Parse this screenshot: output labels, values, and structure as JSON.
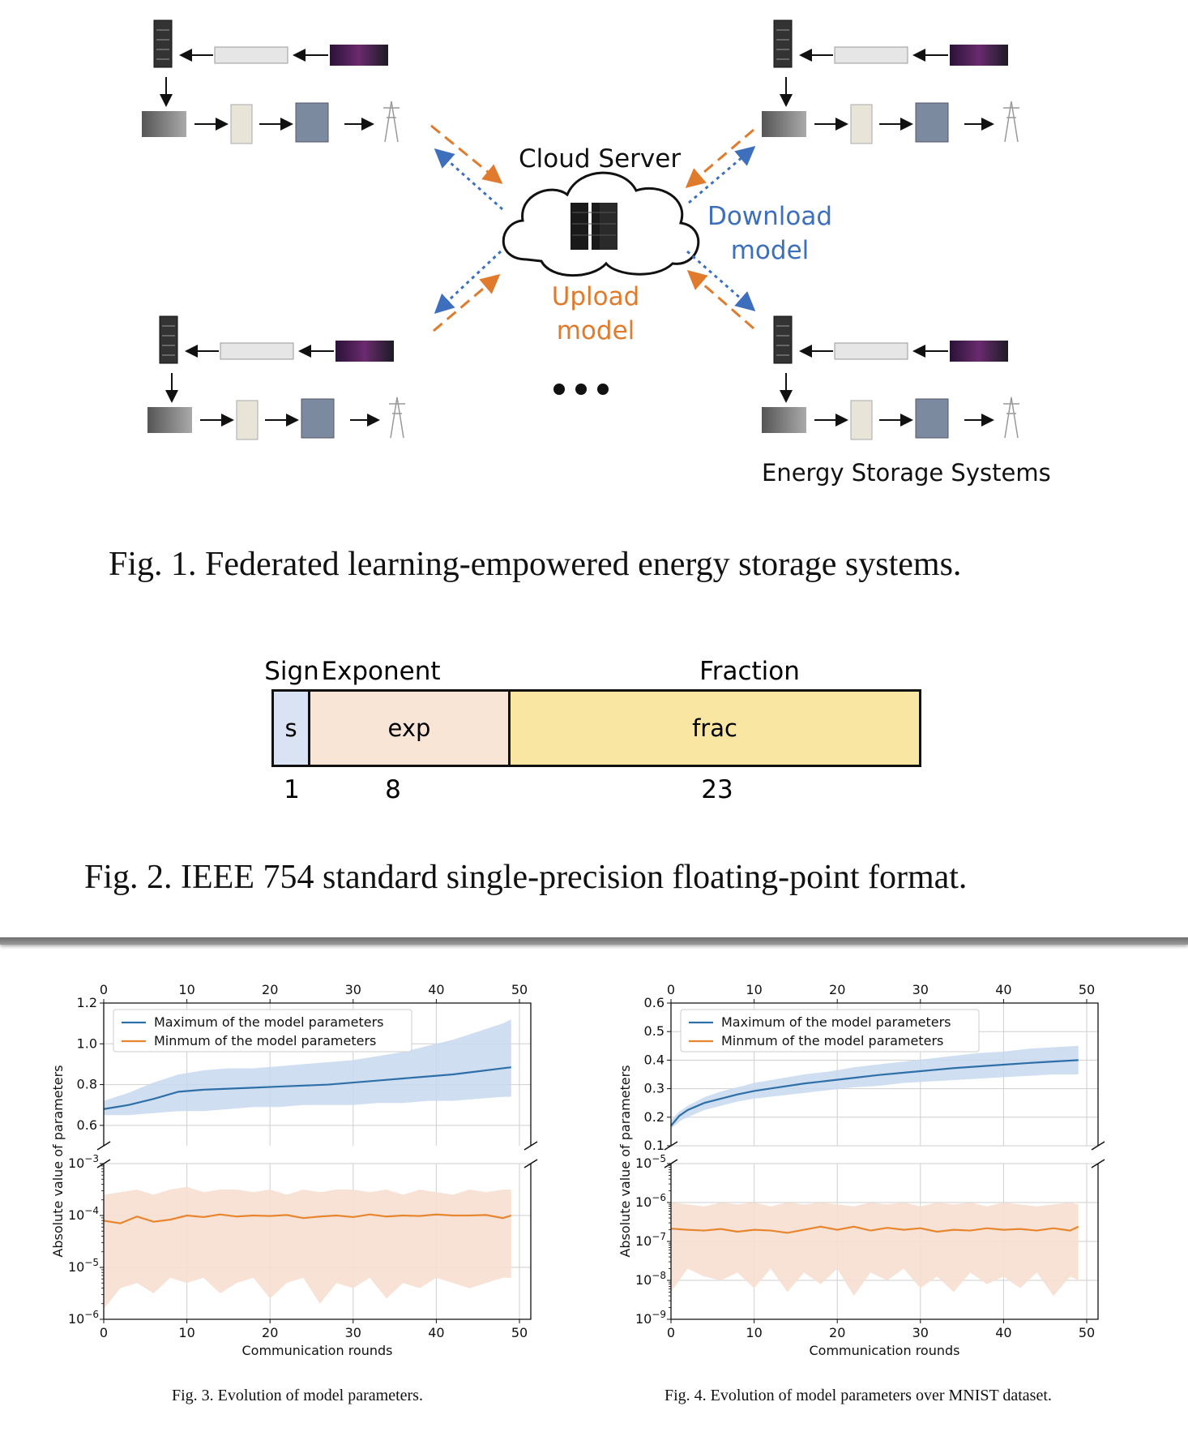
{
  "fig1": {
    "cloud_label": "Cloud Server",
    "download_label": "Download\nmodel",
    "upload_label": "Upload\nmodel",
    "ess_label": "Energy Storage Systems",
    "caption": "Fig. 1.  Federated learning-empowered energy storage systems."
  },
  "fig2": {
    "fields": [
      {
        "header": "Sign",
        "inner": "s",
        "bits": "1",
        "color": "#dae3f3"
      },
      {
        "header": "Exponent",
        "inner": "exp",
        "bits": "8",
        "color": "#f8e5d6"
      },
      {
        "header": "Fraction",
        "inner": "frac",
        "bits": "23",
        "color": "#f9e6a3"
      }
    ],
    "caption": "Fig. 2.  IEEE 754 standard single-precision floating-point format."
  },
  "colors": {
    "max_line": "#2f6fa8",
    "max_band": "#c7d9ee",
    "min_line": "#e8862f",
    "min_band": "#f6dfd0",
    "download": "#3d6fbd",
    "upload": "#e07b2d"
  },
  "chart_data": [
    {
      "type": "line",
      "title": "",
      "caption": "Fig. 3.  Evolution of model parameters.",
      "xlabel": "Communication rounds",
      "ylabel": "Absolute value of parameters",
      "x_ticks": [
        "0",
        "10",
        "20",
        "30",
        "40",
        "50"
      ],
      "xlim": [
        0,
        50
      ],
      "legend": [
        "Maximum of the model parameters",
        "Minmum of the model parameters"
      ],
      "legend_position": "top-left",
      "upper_axis": {
        "ylim": [
          0.5,
          1.2
        ],
        "ticks": [
          "0.6",
          "0.8",
          "1.0",
          "1.2"
        ]
      },
      "lower_axis": {
        "scale": "log",
        "ylim_exp": [
          -6,
          -3
        ],
        "ticks": [
          "10^-6",
          "10^-5",
          "10^-4",
          "10^-3"
        ]
      },
      "max_series": {
        "x": [
          0,
          3,
          6,
          9,
          12,
          15,
          18,
          21,
          24,
          27,
          30,
          33,
          36,
          39,
          42,
          45,
          48,
          49
        ],
        "mean": [
          0.68,
          0.7,
          0.73,
          0.765,
          0.775,
          0.78,
          0.785,
          0.79,
          0.795,
          0.8,
          0.81,
          0.82,
          0.83,
          0.84,
          0.85,
          0.865,
          0.88,
          0.885
        ],
        "upper": [
          0.72,
          0.76,
          0.81,
          0.85,
          0.87,
          0.88,
          0.88,
          0.89,
          0.9,
          0.91,
          0.92,
          0.94,
          0.96,
          0.99,
          1.02,
          1.06,
          1.1,
          1.12
        ],
        "lower": [
          0.65,
          0.65,
          0.66,
          0.67,
          0.67,
          0.68,
          0.69,
          0.69,
          0.7,
          0.7,
          0.7,
          0.71,
          0.71,
          0.72,
          0.72,
          0.73,
          0.74,
          0.74
        ]
      },
      "min_series": {
        "x": [
          0,
          2,
          4,
          6,
          8,
          10,
          12,
          14,
          16,
          18,
          20,
          22,
          24,
          26,
          28,
          30,
          32,
          34,
          36,
          38,
          40,
          42,
          44,
          46,
          48,
          49
        ],
        "mean_exp": [
          -4.1,
          -4.15,
          -4.02,
          -4.12,
          -4.08,
          -4.0,
          -4.03,
          -3.98,
          -4.02,
          -4.0,
          -4.01,
          -3.99,
          -4.05,
          -4.02,
          -4.0,
          -4.03,
          -3.98,
          -4.02,
          -4.0,
          -4.01,
          -3.98,
          -4.0,
          -4.0,
          -3.99,
          -4.05,
          -4.0
        ],
        "upper_exp": [
          -3.6,
          -3.55,
          -3.5,
          -3.6,
          -3.5,
          -3.45,
          -3.55,
          -3.5,
          -3.5,
          -3.55,
          -3.5,
          -3.6,
          -3.5,
          -3.55,
          -3.5,
          -3.5,
          -3.55,
          -3.5,
          -3.6,
          -3.5,
          -3.55,
          -3.6,
          -3.5,
          -3.55,
          -3.5,
          -3.5
        ],
        "lower_exp": [
          -5.8,
          -5.4,
          -5.3,
          -5.5,
          -5.2,
          -5.3,
          -5.2,
          -5.5,
          -5.3,
          -5.2,
          -5.6,
          -5.3,
          -5.2,
          -5.7,
          -5.3,
          -5.4,
          -5.2,
          -5.6,
          -5.3,
          -5.4,
          -5.2,
          -5.3,
          -5.4,
          -5.3,
          -5.2,
          -5.2
        ]
      }
    },
    {
      "type": "line",
      "title": "",
      "caption": "Fig. 4.  Evolution of model parameters over MNIST dataset.",
      "xlabel": "Communication rounds",
      "ylabel": "Absolute value of parameters",
      "x_ticks": [
        "0",
        "10",
        "20",
        "30",
        "40",
        "50"
      ],
      "xlim": [
        0,
        50
      ],
      "legend": [
        "Maximum of the model parameters",
        "Minmum of the model parameters"
      ],
      "legend_position": "top-left",
      "upper_axis": {
        "ylim": [
          0.1,
          0.6
        ],
        "ticks": [
          "0.1",
          "0.2",
          "0.3",
          "0.4",
          "0.5",
          "0.6"
        ]
      },
      "lower_axis": {
        "scale": "log",
        "ylim_exp": [
          -9,
          -5
        ],
        "ticks": [
          "10^-9",
          "10^-8",
          "10^-7",
          "10^-6",
          "10^-5"
        ]
      },
      "max_series": {
        "x": [
          0,
          1,
          2,
          4,
          6,
          8,
          10,
          13,
          16,
          19,
          22,
          25,
          28,
          31,
          34,
          37,
          40,
          43,
          46,
          49
        ],
        "mean": [
          0.17,
          0.205,
          0.225,
          0.25,
          0.265,
          0.28,
          0.292,
          0.305,
          0.318,
          0.328,
          0.338,
          0.348,
          0.356,
          0.364,
          0.372,
          0.378,
          0.384,
          0.39,
          0.395,
          0.4
        ],
        "upper": [
          0.19,
          0.22,
          0.24,
          0.27,
          0.29,
          0.305,
          0.32,
          0.335,
          0.35,
          0.36,
          0.375,
          0.385,
          0.395,
          0.405,
          0.415,
          0.425,
          0.43,
          0.44,
          0.445,
          0.45
        ],
        "lower": [
          0.16,
          0.185,
          0.2,
          0.225,
          0.24,
          0.255,
          0.265,
          0.275,
          0.285,
          0.295,
          0.305,
          0.31,
          0.32,
          0.325,
          0.33,
          0.335,
          0.34,
          0.345,
          0.35,
          0.35
        ]
      },
      "min_series": {
        "x": [
          0,
          2,
          4,
          6,
          8,
          10,
          12,
          14,
          16,
          18,
          20,
          22,
          24,
          26,
          28,
          30,
          32,
          34,
          36,
          38,
          40,
          42,
          44,
          46,
          48,
          49
        ],
        "mean_exp": [
          -6.67,
          -6.7,
          -6.72,
          -6.68,
          -6.75,
          -6.7,
          -6.72,
          -6.78,
          -6.7,
          -6.62,
          -6.7,
          -6.62,
          -6.72,
          -6.65,
          -6.7,
          -6.66,
          -6.75,
          -6.7,
          -6.72,
          -6.66,
          -6.7,
          -6.68,
          -6.72,
          -6.66,
          -6.72,
          -6.62
        ],
        "upper_exp": [
          -6.0,
          -6.05,
          -6.1,
          -6.0,
          -6.05,
          -6.0,
          -6.1,
          -6.0,
          -6.05,
          -6.0,
          -6.05,
          -6.1,
          -6.0,
          -6.05,
          -6.0,
          -6.1,
          -6.0,
          -6.05,
          -6.0,
          -6.1,
          -6.0,
          -6.05,
          -6.1,
          -6.05,
          -6.0,
          -6.05
        ],
        "lower_exp": [
          -8.3,
          -7.7,
          -7.9,
          -8.0,
          -7.8,
          -8.2,
          -7.7,
          -8.3,
          -7.8,
          -8.1,
          -7.7,
          -8.4,
          -7.8,
          -8.0,
          -7.7,
          -8.2,
          -7.9,
          -8.3,
          -7.8,
          -8.1,
          -7.9,
          -8.2,
          -7.8,
          -8.4,
          -7.9,
          -8.0
        ]
      }
    }
  ]
}
